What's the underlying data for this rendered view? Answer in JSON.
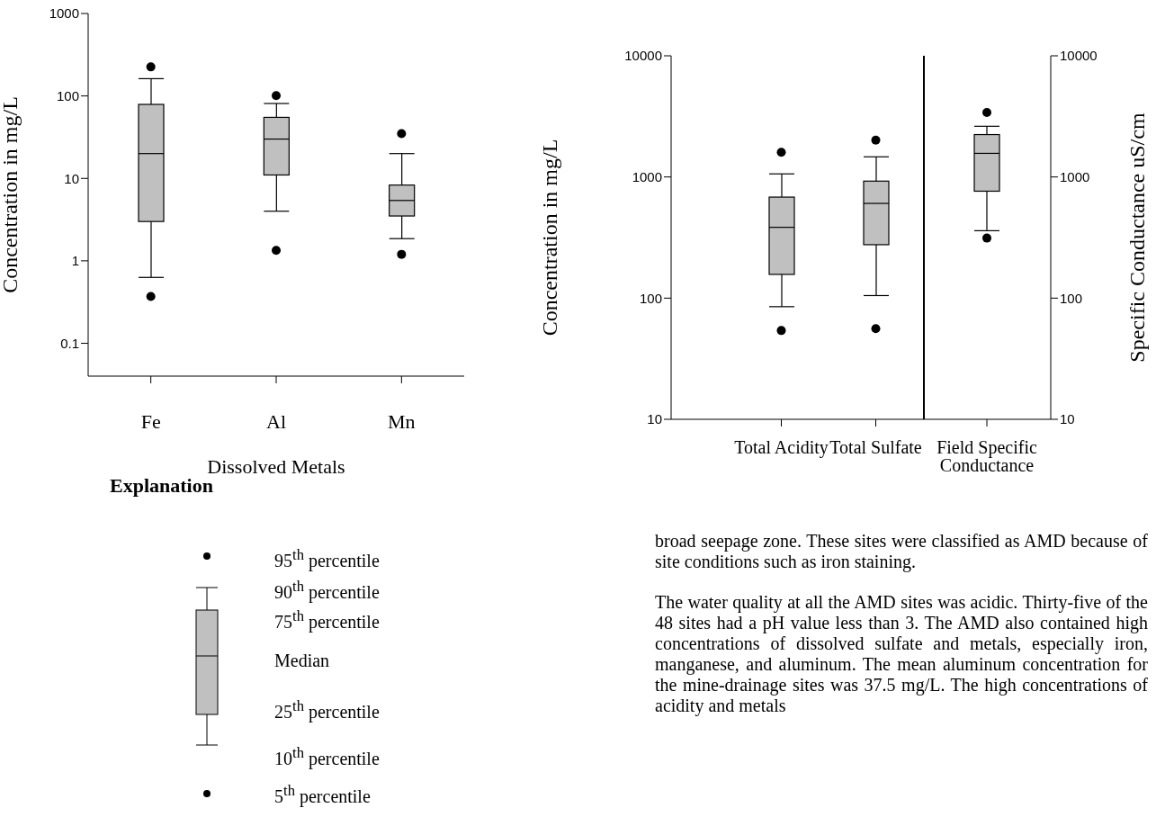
{
  "chart_data": [
    {
      "type": "box",
      "xlabel": "Dissolved Metals",
      "ylabel": "Concentration in mg/L",
      "categories": [
        "Fe",
        "Al",
        "Mn"
      ],
      "log": true,
      "ylim": [
        0.04,
        1000
      ],
      "yticks": [
        0.1,
        1,
        10,
        100,
        1000
      ],
      "marker": "circle",
      "grid": false,
      "legend": false,
      "series": [
        {
          "color": "#c0c0c0",
          "boxes": [
            {
              "low": 0.63,
              "q1": 3,
              "median": 20,
              "q3": 79,
              "high": 162,
              "outliers": [
                225,
                0.37
              ]
            },
            {
              "low": 4,
              "q1": 11,
              "median": 30,
              "q3": 55,
              "high": 81,
              "outliers": [
                101,
                1.34
              ]
            },
            {
              "low": 1.86,
              "q1": 3.5,
              "median": 5.4,
              "q3": 8.3,
              "high": 20,
              "outliers": [
                35,
                1.2
              ]
            }
          ]
        }
      ]
    },
    {
      "type": "box",
      "ylabel": "Concentration in mg/L",
      "categories": [
        "Total Acidity",
        "Total Sulfate"
      ],
      "log": true,
      "ylim": [
        10,
        10000
      ],
      "yticks": [
        10,
        100,
        1000,
        10000
      ],
      "marker": "circle",
      "grid": false,
      "legend": false,
      "series": [
        {
          "color": "#c0c0c0",
          "boxes": [
            {
              "low": 85,
              "q1": 157,
              "median": 384,
              "q3": 682,
              "high": 1060,
              "outliers": [
                1600,
                54
              ]
            },
            {
              "low": 105,
              "q1": 276,
              "median": 605,
              "q3": 924,
              "high": 1466,
              "outliers": [
                2010,
                56
              ]
            }
          ]
        }
      ]
    },
    {
      "type": "box",
      "y2label": "Specific Conductance uS/cm",
      "categories": [
        "Field Specific Conductance"
      ],
      "log": "y2",
      "y2lim": [
        10,
        10000
      ],
      "y2ticks": [
        10,
        100,
        1000,
        10000
      ],
      "marker": "circle",
      "grid": false,
      "legend": false,
      "series": [
        {
          "color": "#c0c0c0",
          "axis": "y2",
          "boxes": [
            {
              "low": 360,
              "q1": 763,
              "median": 1566,
              "q3": 2238,
              "high": 2620,
              "outliers": [
                3410,
                313
              ]
            }
          ]
        }
      ]
    },
    {
      "type": "other",
      "title": "Explanation",
      "annotations": [
        "95$^{th}$ percentile",
        "90$^{th}$ percentile",
        "75$^{th}$ percentile",
        "Median",
        "25$^{th}$ percentile",
        "10$^{th}$ percentile",
        "5$^{th}$ percentile"
      ]
    },
    {
      "type": "other",
      "annotations": [
        "broad seepage zone. These sites were classified as AMD because of site conditions such as iron staining.",
        "The water quality at all the AMD sites was acidic. Thirty-five of the 48 sites had a pH value less than 3. The AMD also contained high concentrations of dissolved sulfate and metals, especially iron, manganese, and aluminum. The mean aluminum concentration for the mine-drainage sites was 37.5 mg/L. The high concentrations of acidity and metals"
      ]
    }
  ]
}
